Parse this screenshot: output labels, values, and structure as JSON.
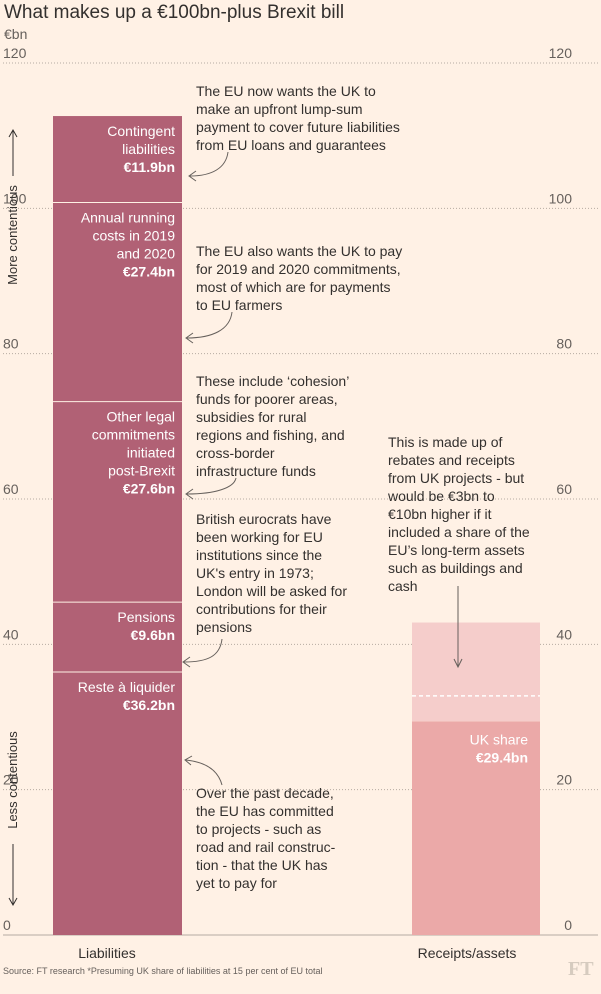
{
  "title": "What makes up a €100bn-plus Brexit bill",
  "unit": "€bn",
  "source": "Source: FT research    *Presuming UK share of liabilities at 15 per cent of EU total",
  "logo": "FT",
  "side_labels": {
    "top": "More contentious",
    "bottom": "Less contentious"
  },
  "colors": {
    "background": "#fff1e5",
    "liabilities": "#b16175",
    "uk_share": "#eba9a8",
    "receipts_extra": "#f5cdcb",
    "grid": "#b6aca2",
    "tick": "#66605c"
  },
  "chart_data": {
    "type": "bar",
    "stacked": true,
    "categories": [
      "Liabilities",
      "Receipts/assets"
    ],
    "ylim": [
      0,
      120
    ],
    "yticks": [
      0,
      20,
      40,
      60,
      80,
      100,
      120
    ],
    "grid": true,
    "liabilities_segments": [
      {
        "lines": [
          "Reste à liquider"
        ],
        "value_label": "€36.2bn",
        "value": 36.2
      },
      {
        "lines": [
          "Pensions"
        ],
        "value_label": "€9.6bn",
        "value": 9.6
      },
      {
        "lines": [
          "Other legal",
          "commitments",
          "initiated",
          "post-Brexit"
        ],
        "value_label": "€27.6bn",
        "value": 27.6
      },
      {
        "lines": [
          "Annual running",
          "costs in 2019",
          "and 2020"
        ],
        "value_label": "€27.4bn",
        "value": 27.4
      },
      {
        "lines": [
          "Contingent",
          "liabilities"
        ],
        "value_label": "€11.9bn",
        "value": 11.9
      }
    ],
    "receipts_segments": [
      {
        "lines": [
          "UK share"
        ],
        "value_label": "€29.4bn",
        "value": 29.4
      },
      {
        "lines": [],
        "value_label": "",
        "value": 13.6
      }
    ],
    "receipts_dashed_at": 32.9
  },
  "annotations": [
    {
      "id": "contingent",
      "lines": [
        "The EU now wants the UK to",
        "make an upfront lump-sum",
        "payment to cover future liabilities",
        "from EU loans and guarantees"
      ]
    },
    {
      "id": "running",
      "lines": [
        "The EU also wants the UK to pay",
        "for 2019 and 2020 commitments,",
        "most of which are for payments",
        "to EU farmers"
      ]
    },
    {
      "id": "cohesion",
      "lines": [
        "These include ‘cohesion’",
        "funds for poorer areas,",
        "subsidies for rural",
        "regions and fishing, and",
        "cross-border",
        "infrastructure funds"
      ]
    },
    {
      "id": "pensions",
      "lines": [
        "British eurocrats have",
        "been working for EU",
        "institutions since the",
        "UK's entry in 1973;",
        "London will be asked for",
        "contributions for their",
        "pensions"
      ]
    },
    {
      "id": "reste",
      "lines": [
        "Over the past decade,",
        "the EU has committed",
        "to projects - such as",
        "road and rail construc-",
        "tion - that the UK has",
        "yet to pay for"
      ]
    },
    {
      "id": "receipts",
      "lines": [
        "This is made up of",
        "rebates and receipts",
        "from UK projects - but",
        "would be €3bn to",
        "€10bn higher if it",
        "included a share of the",
        "EU’s long-term assets",
        "such as buildings and",
        "cash"
      ]
    }
  ]
}
